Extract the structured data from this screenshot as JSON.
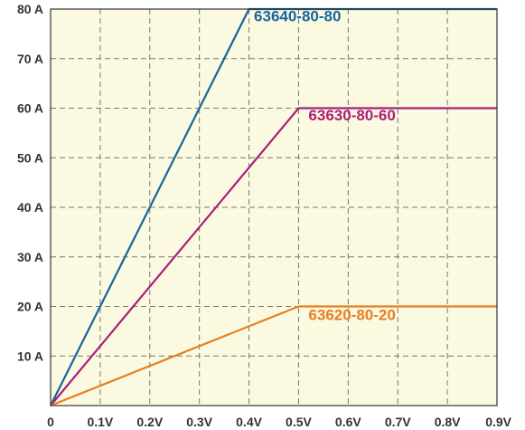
{
  "chart_data": {
    "type": "line",
    "title": "",
    "xlabel": "",
    "ylabel": "",
    "xlim": [
      0,
      0.9
    ],
    "ylim": [
      0,
      80
    ],
    "grid": true,
    "legend": "inline labels",
    "x_ticks": [
      {
        "value": 0,
        "label": "0"
      },
      {
        "value": 0.1,
        "label": "0.1V"
      },
      {
        "value": 0.2,
        "label": "0.2V"
      },
      {
        "value": 0.3,
        "label": "0.3V"
      },
      {
        "value": 0.4,
        "label": "0.4V"
      },
      {
        "value": 0.5,
        "label": "0.5V"
      },
      {
        "value": 0.6,
        "label": "0.6V"
      },
      {
        "value": 0.7,
        "label": "0.7V"
      },
      {
        "value": 0.8,
        "label": "0.8V"
      },
      {
        "value": 0.9,
        "label": "0.9V"
      }
    ],
    "y_ticks": [
      {
        "value": 10,
        "label": "10 A"
      },
      {
        "value": 20,
        "label": "20 A"
      },
      {
        "value": 30,
        "label": "30 A"
      },
      {
        "value": 40,
        "label": "40 A"
      },
      {
        "value": 50,
        "label": "50 A"
      },
      {
        "value": 60,
        "label": "60 A"
      },
      {
        "value": 70,
        "label": "70 A"
      },
      {
        "value": 80,
        "label": "80 A"
      }
    ],
    "series": [
      {
        "name": "63640-80-80",
        "color": "#1565a0",
        "points": [
          [
            0,
            0
          ],
          [
            0.4,
            80
          ],
          [
            0.9,
            80
          ]
        ]
      },
      {
        "name": "63630-80-60",
        "color": "#a8207a",
        "points": [
          [
            0,
            0
          ],
          [
            0.5,
            60
          ],
          [
            0.9,
            60
          ]
        ]
      },
      {
        "name": "63620-80-20",
        "color": "#e67e22",
        "points": [
          [
            0,
            0
          ],
          [
            0.5,
            20
          ],
          [
            0.9,
            20
          ]
        ]
      }
    ],
    "plot_background": "#fcf9e1"
  }
}
